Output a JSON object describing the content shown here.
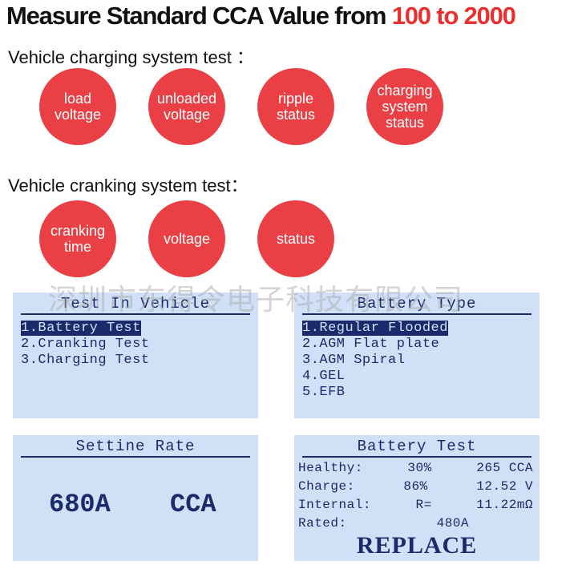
{
  "header": {
    "title": "Measure Standard CCA Value from ",
    "highlight": "100 to 2000"
  },
  "charging": {
    "heading": "Vehicle charging system test ：",
    "items": [
      "load voltage",
      "unloaded voltage",
      "ripple status",
      "charging system status"
    ]
  },
  "cranking": {
    "heading": "Vehicle cranking system test：",
    "items": [
      "cranking time",
      "voltage",
      "status"
    ]
  },
  "watermark": "深圳市东得令电子科技有限公司",
  "screens": [
    {
      "title": "Test In Vehicle",
      "selected": 0,
      "items": [
        "1.Battery Test",
        "2.Cranking Test",
        "3.Charging Test"
      ]
    },
    {
      "title": "Battery Type",
      "selected": 0,
      "items": [
        "1.Regular Flooded",
        "2.AGM Flat plate",
        "3.AGM Spiral",
        "4.GEL",
        "5.EFB"
      ]
    },
    {
      "title": "Settine Rate",
      "value": "680A",
      "unit": "CCA"
    },
    {
      "title": "Battery Test",
      "rows": [
        [
          "Healthy:",
          "30%",
          "265 CCA"
        ],
        [
          "Charge:",
          "86%",
          "12.52 V"
        ],
        [
          "Internal:",
          "R=",
          "11.22mΩ"
        ],
        [
          "Rated:",
          "480A"
        ]
      ],
      "status": "REPLACE"
    }
  ]
}
